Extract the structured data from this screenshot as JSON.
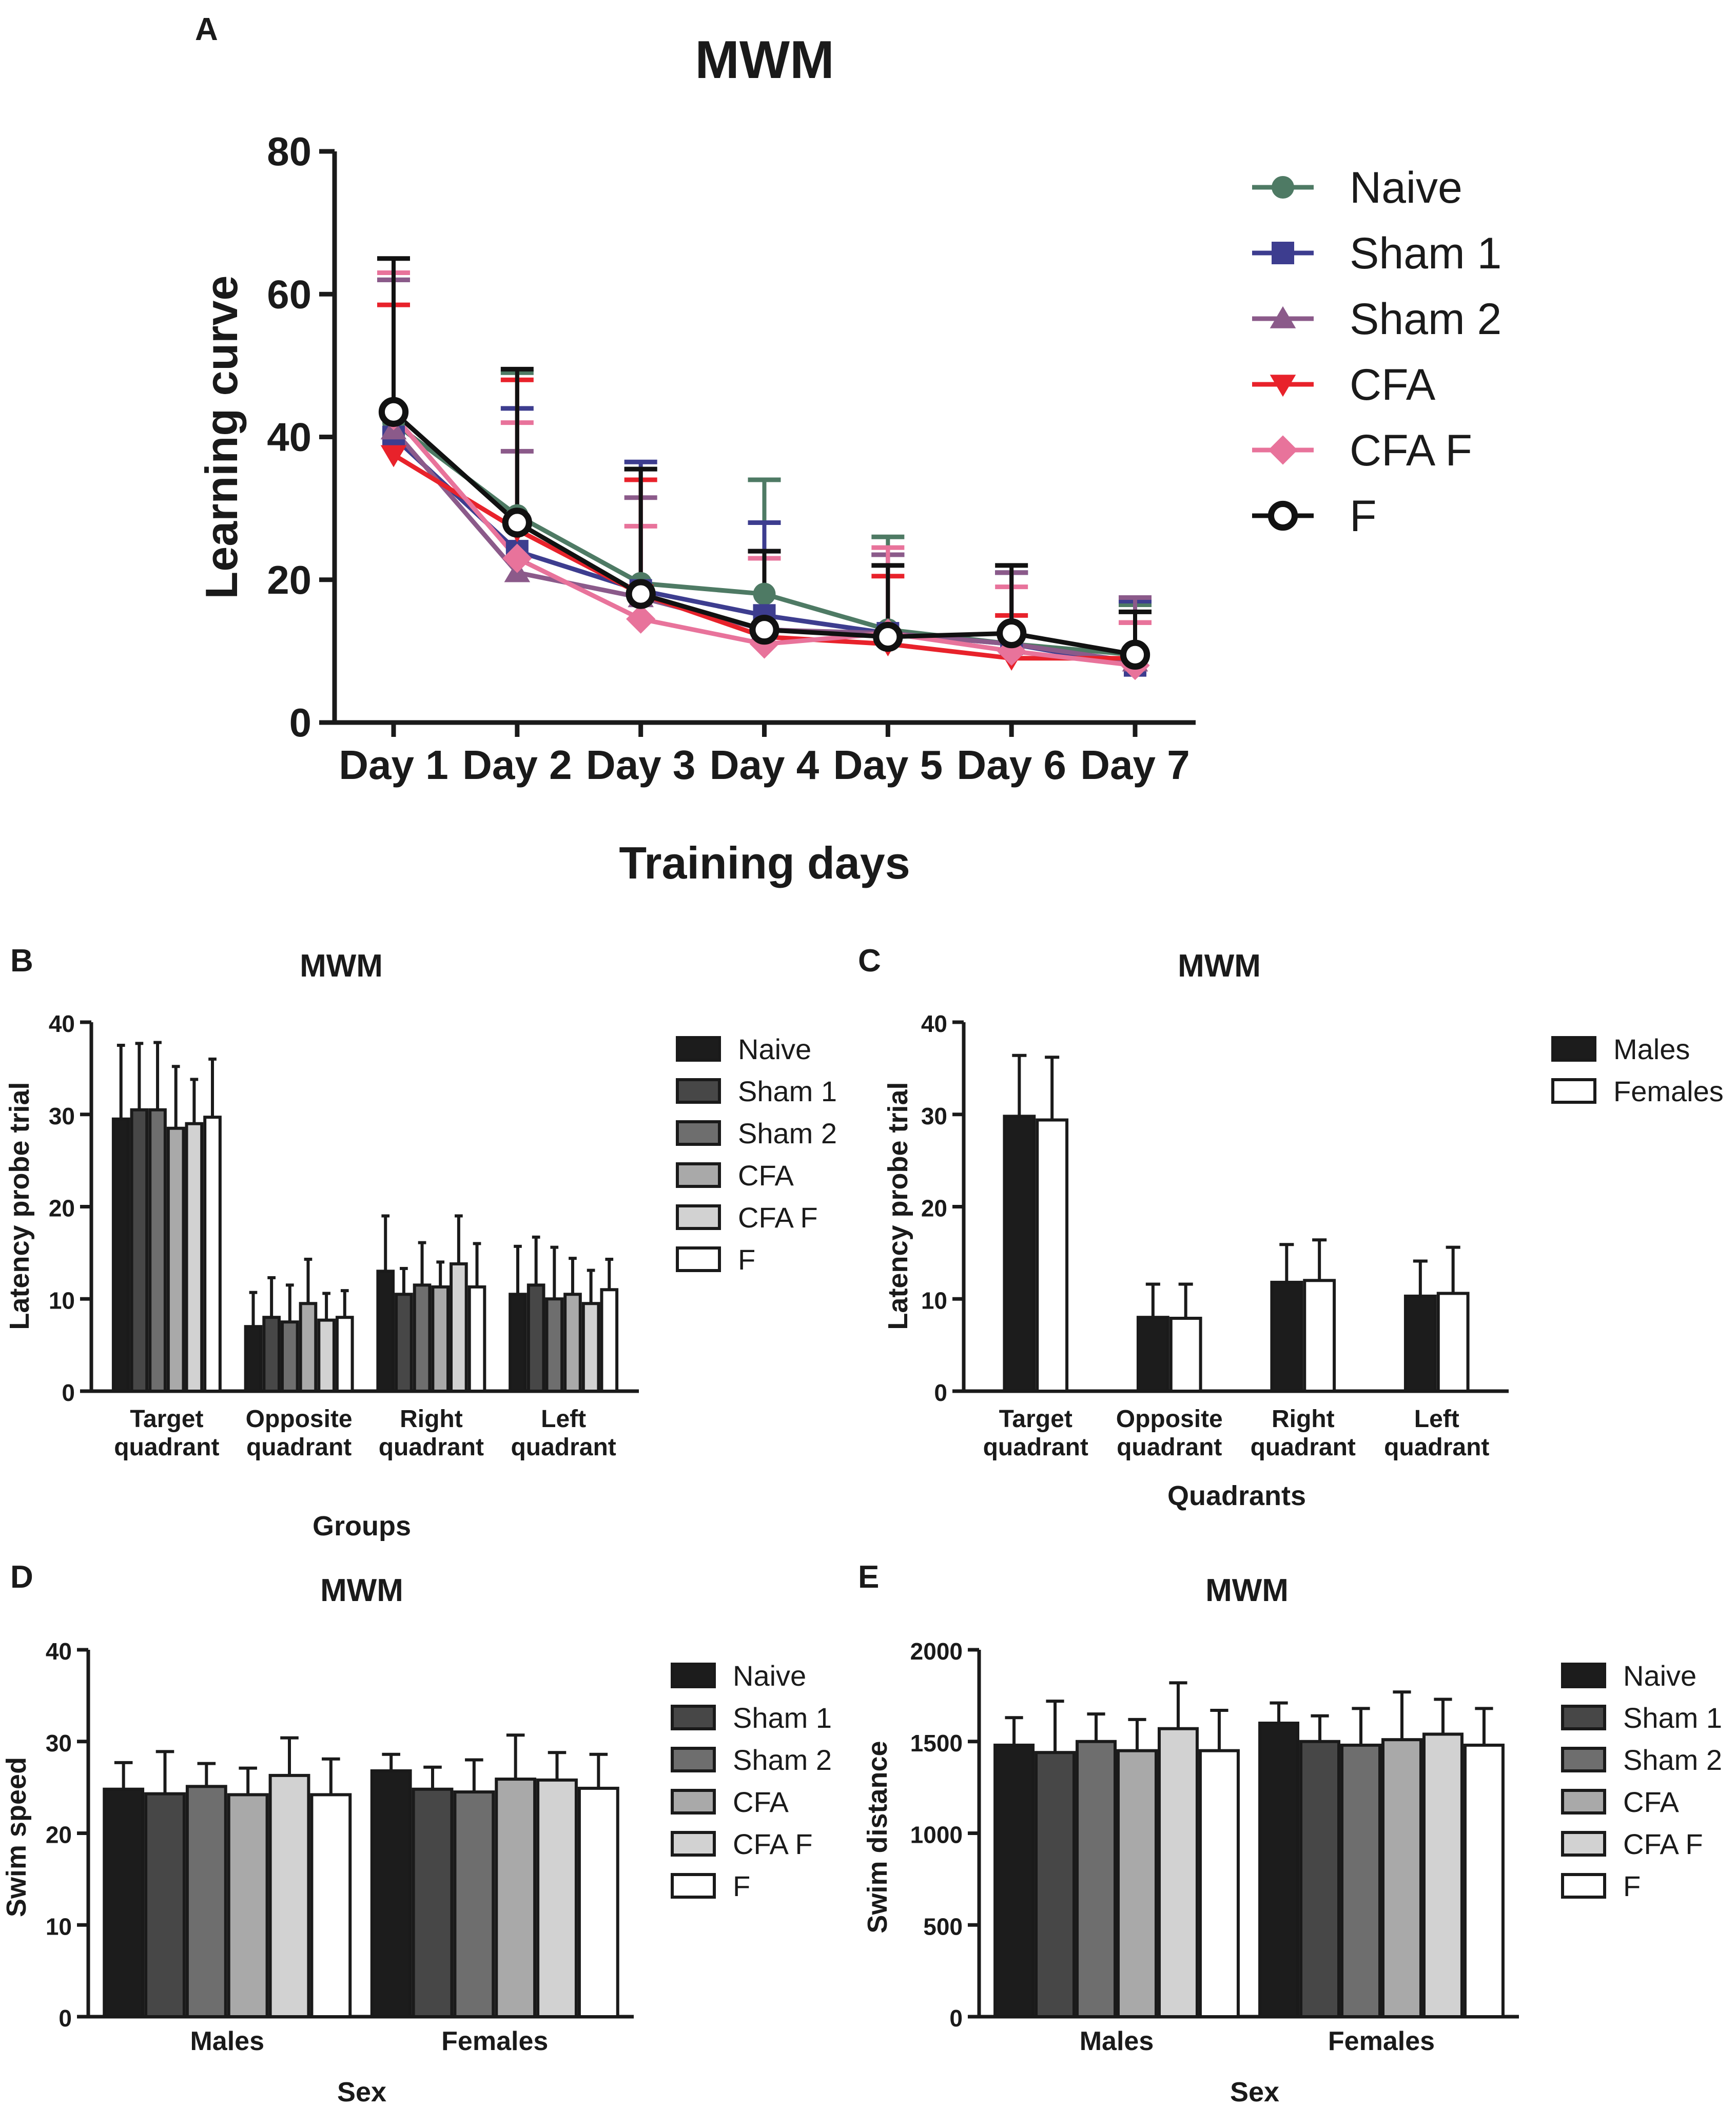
{
  "chart_data": [
    {
      "panel": "A",
      "type": "line",
      "title": "MWM",
      "xlabel": "Training days",
      "ylabel": "Learning curve",
      "categories": [
        "Day 1",
        "Day 2",
        "Day 3",
        "Day 4",
        "Day 5",
        "Day 6",
        "Day 7"
      ],
      "ylim": [
        0,
        80
      ],
      "yticks": [
        "0",
        "20",
        "40",
        "60",
        "80"
      ],
      "legend_position": "right",
      "series": [
        {
          "name": "Naive",
          "marker": "circle",
          "color": "#4e7a64",
          "values": [
            42,
            29,
            19.5,
            18,
            13,
            11,
            9.5
          ],
          "err": [
            20,
            20,
            16,
            16,
            13,
            10,
            7
          ]
        },
        {
          "name": "Sham 1",
          "marker": "square",
          "color": "#3d3d8f",
          "values": [
            40,
            24,
            18.5,
            15,
            12.5,
            11,
            8
          ],
          "err": [
            23,
            20,
            18,
            13,
            11,
            10,
            9
          ]
        },
        {
          "name": "Sham 2",
          "marker": "triangle-up",
          "color": "#8b5a8a",
          "values": [
            41,
            21,
            17.5,
            13,
            12.5,
            11,
            8.5
          ],
          "err": [
            21,
            17,
            14,
            11,
            11,
            10,
            9
          ]
        },
        {
          "name": "CFA",
          "marker": "triangle-down",
          "color": "#e8222b",
          "values": [
            37.5,
            27,
            18,
            12,
            11,
            9,
            9
          ],
          "err": [
            21,
            21,
            16,
            11,
            9.5,
            6,
            5
          ]
        },
        {
          "name": "CFA F",
          "marker": "diamond",
          "color": "#e8739b",
          "values": [
            43,
            23,
            14.5,
            11,
            12.5,
            10,
            8
          ],
          "err": [
            20,
            19,
            13,
            12,
            12,
            9,
            6
          ]
        },
        {
          "name": "F",
          "marker": "open-circle",
          "color": "#111111",
          "values": [
            43.5,
            28,
            18,
            13,
            12,
            12.5,
            9.5
          ],
          "err": [
            21.5,
            21.5,
            17.5,
            11,
            10,
            9.5,
            6
          ]
        }
      ]
    },
    {
      "panel": "B",
      "type": "bar",
      "title": "MWM",
      "xlabel": "Groups",
      "ylabel": "Latency probe trial",
      "categories": [
        "Target\nquadrant",
        "Opposite\nquadrant",
        "Right\nquadrant",
        "Left\nquadrant"
      ],
      "ylim": [
        0,
        40
      ],
      "yticks": [
        "0",
        "10",
        "20",
        "30",
        "40"
      ],
      "legend_position": "right",
      "series": [
        {
          "name": "Naive",
          "color": "#1c1c1c",
          "values": [
            29.5,
            7,
            13,
            10.5
          ],
          "err": [
            8,
            3.7,
            6,
            5.2
          ]
        },
        {
          "name": "Sham 1",
          "color": "#474747",
          "values": [
            30.5,
            8,
            10.5,
            11.5
          ],
          "err": [
            7.2,
            4.3,
            2.8,
            5.2
          ]
        },
        {
          "name": "Sham 2",
          "color": "#6e6e6e",
          "values": [
            30.5,
            7.5,
            11.5,
            10
          ],
          "err": [
            7.3,
            4,
            4.6,
            5.6
          ]
        },
        {
          "name": "CFA",
          "color": "#a9a9a9",
          "values": [
            28.5,
            9.5,
            11.3,
            10.5
          ],
          "err": [
            6.7,
            4.8,
            2.7,
            3.9
          ]
        },
        {
          "name": "CFA F",
          "color": "#d2d2d2",
          "values": [
            29,
            7.7,
            13.8,
            9.5
          ],
          "err": [
            4.8,
            2.9,
            5.2,
            3.6
          ]
        },
        {
          "name": "F",
          "color": "#ffffff",
          "values": [
            29.7,
            8,
            11.3,
            11
          ],
          "err": [
            6.3,
            2.9,
            4.7,
            3.3
          ]
        }
      ]
    },
    {
      "panel": "C",
      "type": "bar",
      "title": "MWM",
      "xlabel": "Quadrants",
      "ylabel": "Latency probe trial",
      "categories": [
        "Target\nquadrant",
        "Opposite\nquadrant",
        "Right\nquadrant",
        "Left\nquadrant"
      ],
      "ylim": [
        0,
        40
      ],
      "yticks": [
        "0",
        "10",
        "20",
        "30",
        "40"
      ],
      "legend_position": "top-right",
      "series": [
        {
          "name": "Males",
          "color": "#1c1c1c",
          "values": [
            29.8,
            8,
            11.8,
            10.3
          ],
          "err": [
            6.6,
            3.6,
            4.1,
            3.8
          ]
        },
        {
          "name": "Females",
          "color": "#ffffff",
          "values": [
            29.4,
            7.9,
            12,
            10.6
          ],
          "err": [
            6.8,
            3.7,
            4.4,
            5
          ]
        }
      ]
    },
    {
      "panel": "D",
      "type": "bar",
      "title": "MWM",
      "xlabel": "Sex",
      "ylabel": "Swim speed",
      "categories": [
        "Males",
        "Females"
      ],
      "ylim": [
        0,
        40
      ],
      "yticks": [
        "0",
        "10",
        "20",
        "30",
        "40"
      ],
      "legend_position": "right",
      "series": [
        {
          "name": "Naive",
          "color": "#1c1c1c",
          "values": [
            24.8,
            26.8
          ],
          "err": [
            2.9,
            1.8
          ]
        },
        {
          "name": "Sham 1",
          "color": "#474747",
          "values": [
            24.3,
            24.8
          ],
          "err": [
            4.6,
            2.4
          ]
        },
        {
          "name": "Sham 2",
          "color": "#6e6e6e",
          "values": [
            25.1,
            24.5
          ],
          "err": [
            2.5,
            3.5
          ]
        },
        {
          "name": "CFA",
          "color": "#a9a9a9",
          "values": [
            24.2,
            25.9
          ],
          "err": [
            2.9,
            4.8
          ]
        },
        {
          "name": "CFA F",
          "color": "#d2d2d2",
          "values": [
            26.3,
            25.8
          ],
          "err": [
            4.1,
            3
          ]
        },
        {
          "name": "F",
          "color": "#ffffff",
          "values": [
            24.2,
            24.9
          ],
          "err": [
            3.9,
            3.7
          ]
        }
      ]
    },
    {
      "panel": "E",
      "type": "bar",
      "title": "MWM",
      "xlabel": "Sex",
      "ylabel": "Swim distance",
      "categories": [
        "Males",
        "Females"
      ],
      "ylim": [
        0,
        2000
      ],
      "yticks": [
        "0",
        "500",
        "1000",
        "1500",
        "2000"
      ],
      "legend_position": "right",
      "series": [
        {
          "name": "Naive",
          "color": "#1c1c1c",
          "values": [
            1480,
            1600
          ],
          "err": [
            150,
            110
          ]
        },
        {
          "name": "Sham 1",
          "color": "#474747",
          "values": [
            1440,
            1500
          ],
          "err": [
            280,
            140
          ]
        },
        {
          "name": "Sham 2",
          "color": "#6e6e6e",
          "values": [
            1500,
            1480
          ],
          "err": [
            150,
            200
          ]
        },
        {
          "name": "CFA",
          "color": "#a9a9a9",
          "values": [
            1450,
            1510
          ],
          "err": [
            170,
            260
          ]
        },
        {
          "name": "CFA F",
          "color": "#d2d2d2",
          "values": [
            1570,
            1540
          ],
          "err": [
            250,
            190
          ]
        },
        {
          "name": "F",
          "color": "#ffffff",
          "values": [
            1450,
            1480
          ],
          "err": [
            220,
            200
          ]
        }
      ]
    }
  ]
}
